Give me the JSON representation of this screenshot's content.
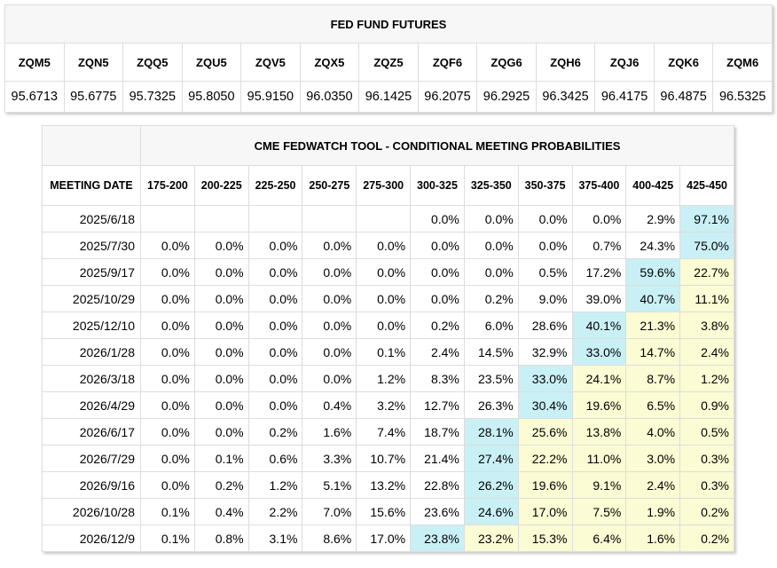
{
  "futures": {
    "title": "FED FUND FUTURES",
    "contracts": [
      "ZQM5",
      "ZQN5",
      "ZQQ5",
      "ZQU5",
      "ZQV5",
      "ZQX5",
      "ZQZ5",
      "ZQF6",
      "ZQG6",
      "ZQH6",
      "ZQJ6",
      "ZQK6",
      "ZQM6"
    ],
    "prices": [
      "95.6713",
      "95.6775",
      "95.7325",
      "95.8050",
      "95.9150",
      "96.0350",
      "96.1425",
      "96.2075",
      "96.2925",
      "96.3425",
      "96.4175",
      "96.4875",
      "96.5325"
    ]
  },
  "fedwatch": {
    "title": "CME FEDWATCH TOOL - CONDITIONAL MEETING PROBABILITIES",
    "date_header": "MEETING DATE",
    "ranges": [
      "175-200",
      "200-225",
      "225-250",
      "250-275",
      "275-300",
      "300-325",
      "325-350",
      "350-375",
      "375-400",
      "400-425",
      "425-450"
    ],
    "colors": {
      "max": "#c9f0f5",
      "after_max": "#fbfbd4"
    },
    "rows": [
      {
        "date": "2025/6/18",
        "probs": [
          "",
          "",
          "",
          "",
          "",
          "0.0%",
          "0.0%",
          "0.0%",
          "0.0%",
          "2.9%",
          "97.1%"
        ]
      },
      {
        "date": "2025/7/30",
        "probs": [
          "0.0%",
          "0.0%",
          "0.0%",
          "0.0%",
          "0.0%",
          "0.0%",
          "0.0%",
          "0.0%",
          "0.7%",
          "24.3%",
          "75.0%"
        ]
      },
      {
        "date": "2025/9/17",
        "probs": [
          "0.0%",
          "0.0%",
          "0.0%",
          "0.0%",
          "0.0%",
          "0.0%",
          "0.0%",
          "0.5%",
          "17.2%",
          "59.6%",
          "22.7%"
        ]
      },
      {
        "date": "2025/10/29",
        "probs": [
          "0.0%",
          "0.0%",
          "0.0%",
          "0.0%",
          "0.0%",
          "0.0%",
          "0.2%",
          "9.0%",
          "39.0%",
          "40.7%",
          "11.1%"
        ]
      },
      {
        "date": "2025/12/10",
        "probs": [
          "0.0%",
          "0.0%",
          "0.0%",
          "0.0%",
          "0.0%",
          "0.2%",
          "6.0%",
          "28.6%",
          "40.1%",
          "21.3%",
          "3.8%"
        ]
      },
      {
        "date": "2026/1/28",
        "probs": [
          "0.0%",
          "0.0%",
          "0.0%",
          "0.0%",
          "0.1%",
          "2.4%",
          "14.5%",
          "32.9%",
          "33.0%",
          "14.7%",
          "2.4%"
        ]
      },
      {
        "date": "2026/3/18",
        "probs": [
          "0.0%",
          "0.0%",
          "0.0%",
          "0.0%",
          "1.2%",
          "8.3%",
          "23.5%",
          "33.0%",
          "24.1%",
          "8.7%",
          "1.2%"
        ]
      },
      {
        "date": "2026/4/29",
        "probs": [
          "0.0%",
          "0.0%",
          "0.0%",
          "0.4%",
          "3.2%",
          "12.7%",
          "26.3%",
          "30.4%",
          "19.6%",
          "6.5%",
          "0.9%"
        ]
      },
      {
        "date": "2026/6/17",
        "probs": [
          "0.0%",
          "0.0%",
          "0.2%",
          "1.6%",
          "7.4%",
          "18.7%",
          "28.1%",
          "25.6%",
          "13.8%",
          "4.0%",
          "0.5%"
        ]
      },
      {
        "date": "2026/7/29",
        "probs": [
          "0.0%",
          "0.1%",
          "0.6%",
          "3.3%",
          "10.7%",
          "21.4%",
          "27.4%",
          "22.2%",
          "11.0%",
          "3.0%",
          "0.3%"
        ]
      },
      {
        "date": "2026/9/16",
        "probs": [
          "0.0%",
          "0.2%",
          "1.2%",
          "5.1%",
          "13.2%",
          "22.8%",
          "26.2%",
          "19.6%",
          "9.1%",
          "2.4%",
          "0.3%"
        ]
      },
      {
        "date": "2026/10/28",
        "probs": [
          "0.1%",
          "0.4%",
          "2.2%",
          "7.0%",
          "15.6%",
          "23.6%",
          "24.6%",
          "17.0%",
          "7.5%",
          "1.9%",
          "0.2%"
        ]
      },
      {
        "date": "2026/12/9",
        "probs": [
          "0.1%",
          "0.8%",
          "3.1%",
          "8.6%",
          "17.0%",
          "23.8%",
          "23.2%",
          "15.3%",
          "6.4%",
          "1.6%",
          "0.2%"
        ]
      }
    ]
  }
}
